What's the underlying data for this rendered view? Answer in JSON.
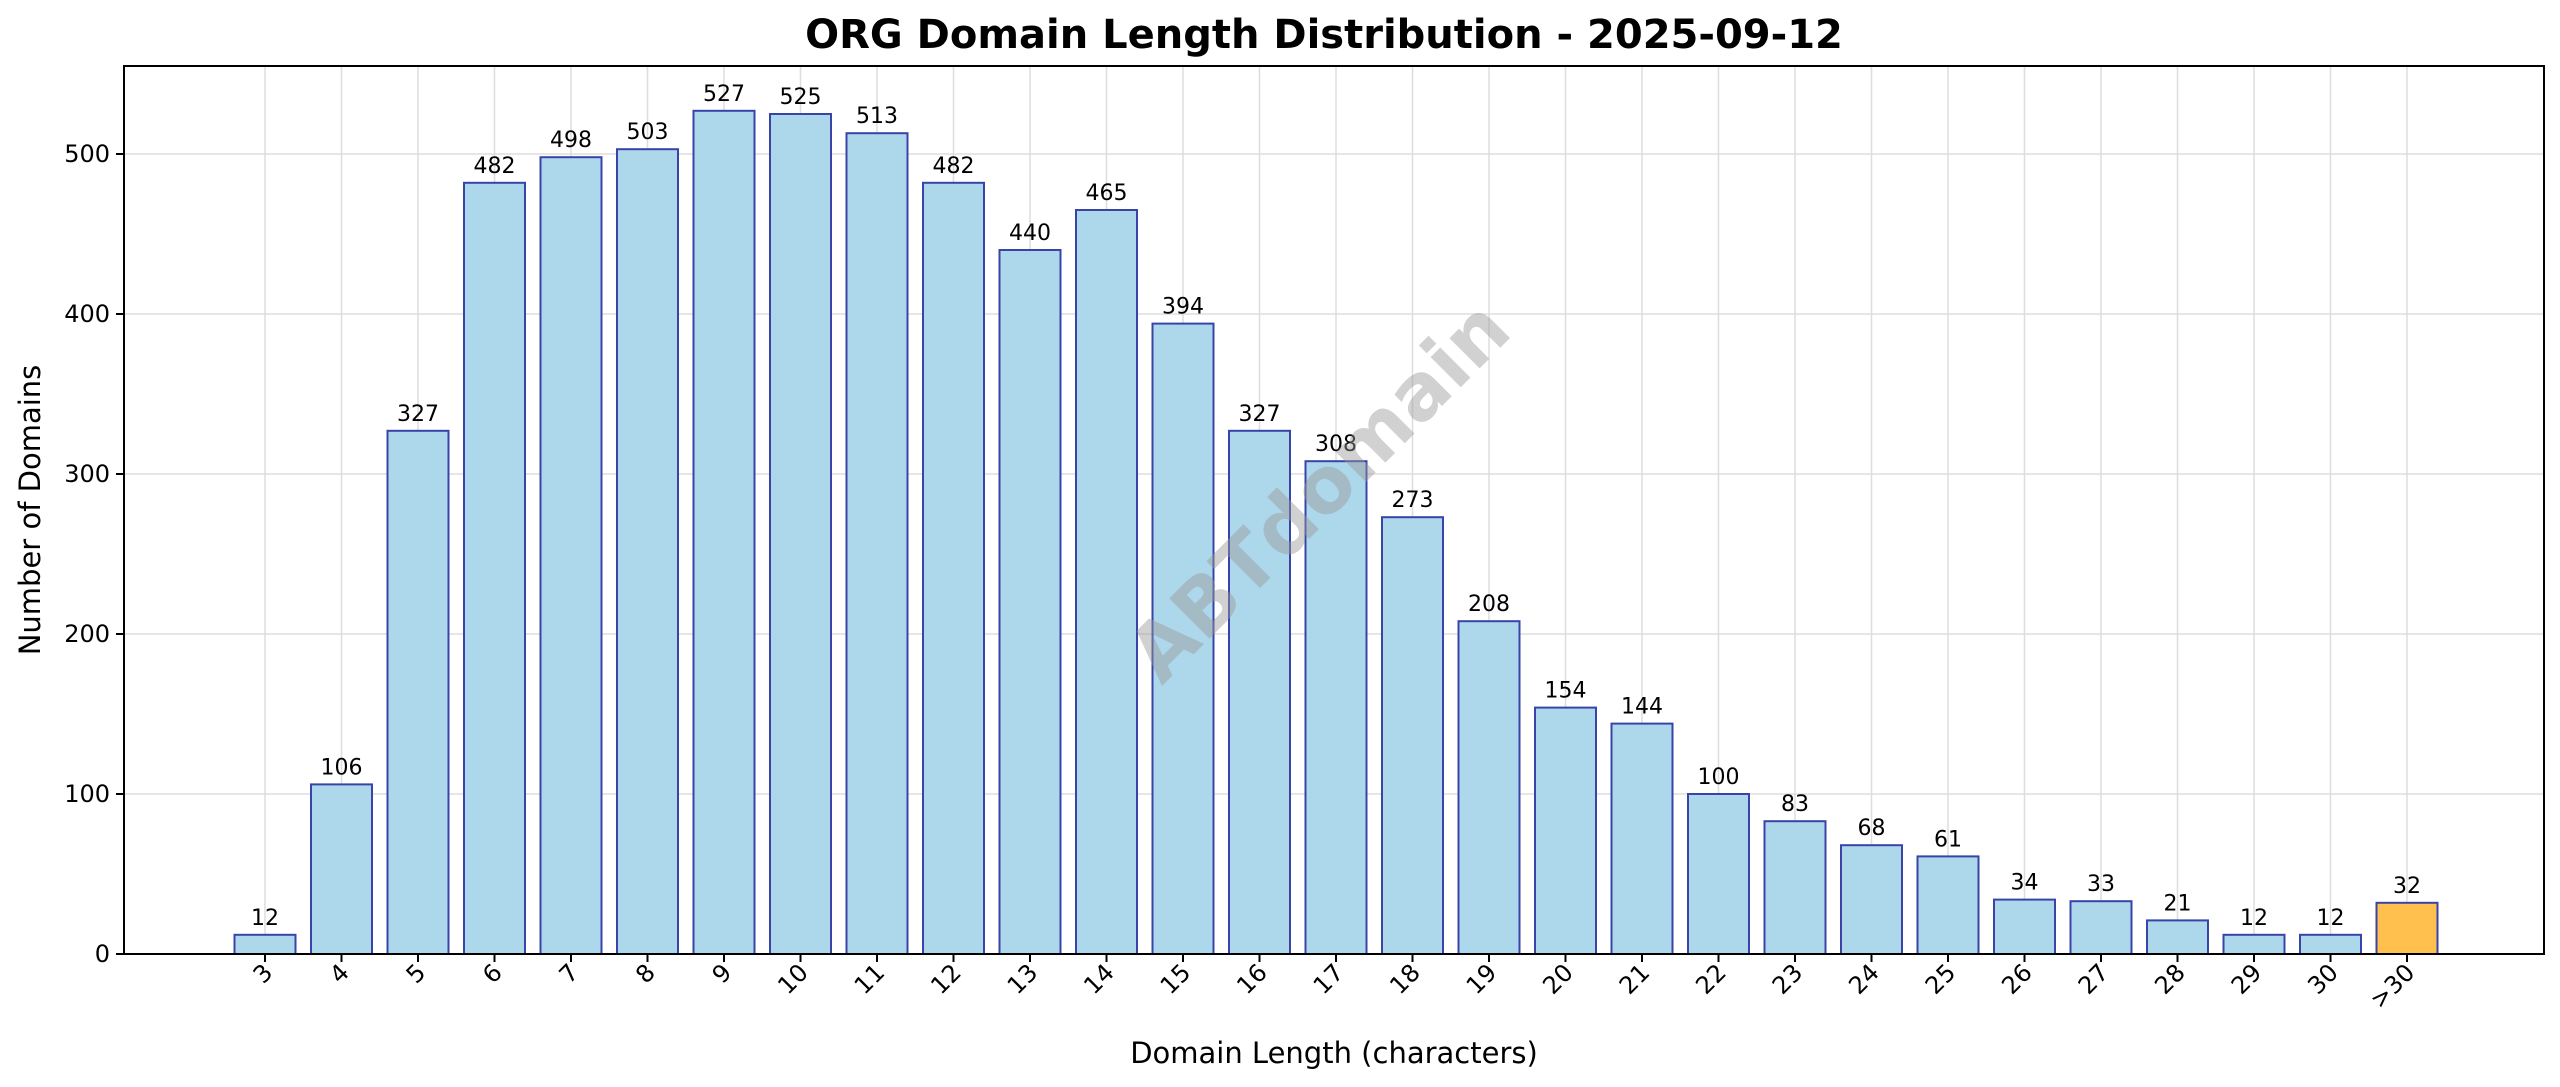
{
  "chart_data": {
    "type": "bar",
    "title": "ORG Domain Length Distribution - 2025-09-12",
    "xlabel": "Domain Length (characters)",
    "ylabel": "Number of Domains",
    "categories": [
      "3",
      "4",
      "5",
      "6",
      "7",
      "8",
      "9",
      "10",
      "11",
      "12",
      "13",
      "14",
      "15",
      "16",
      "17",
      "18",
      "19",
      "20",
      "21",
      "22",
      "23",
      "24",
      "25",
      "26",
      "27",
      "28",
      "29",
      "30",
      ">30"
    ],
    "values": [
      12,
      106,
      327,
      482,
      498,
      503,
      527,
      525,
      513,
      482,
      440,
      465,
      394,
      327,
      308,
      273,
      208,
      154,
      144,
      100,
      83,
      68,
      61,
      34,
      33,
      21,
      12,
      12,
      32
    ],
    "ylim": [
      0,
      555
    ],
    "yticks": [
      0,
      100,
      200,
      300,
      400,
      500
    ],
    "grid": true,
    "watermark": "ABTdomain",
    "colors": {
      "bar_fill": "#add8ec",
      "bar_edge": "#3a44a8",
      "highlight_fill": "#ffc04d",
      "grid": "#dddddd",
      "axis": "#000000"
    },
    "highlight_category": ">30"
  }
}
